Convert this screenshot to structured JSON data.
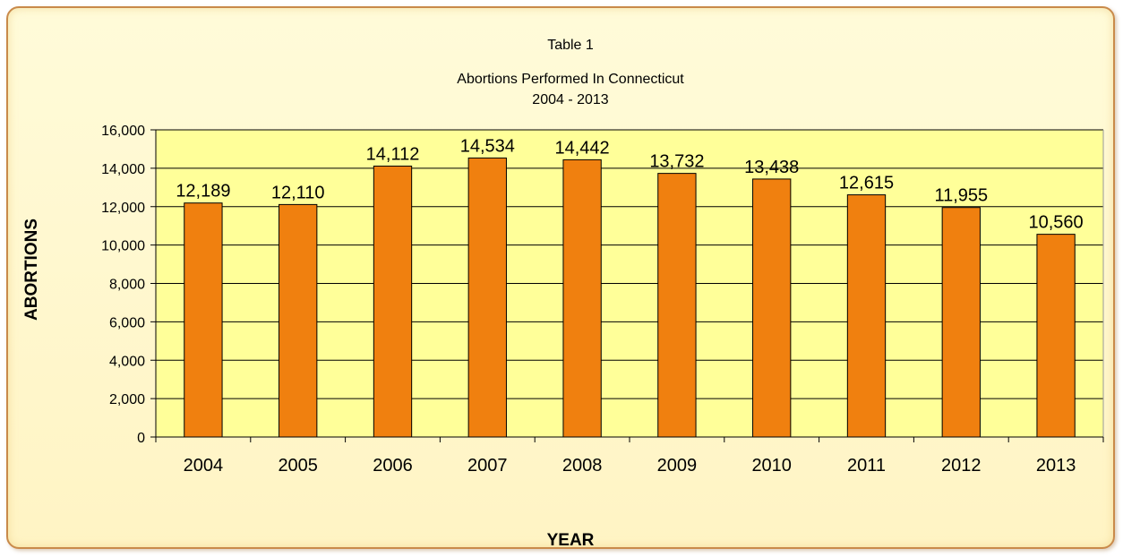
{
  "colors": {
    "plot_background": "#ffff99",
    "bar_fill": "#f0800f",
    "bar_stroke": "#000000",
    "gridline": "#000000",
    "frame_border": "#c98a4a"
  },
  "chart_data": {
    "type": "bar",
    "title": [
      "Table 1",
      "Abortions Performed In Connecticut",
      "2004 - 2013"
    ],
    "xlabel": "YEAR",
    "ylabel": "ABORTIONS",
    "categories": [
      "2004",
      "2005",
      "2006",
      "2007",
      "2008",
      "2009",
      "2010",
      "2011",
      "2012",
      "2013"
    ],
    "values": [
      12189,
      12110,
      14112,
      14534,
      14442,
      13732,
      13438,
      12615,
      11955,
      10560
    ],
    "data_labels": [
      "12,189",
      "12,110",
      "14,112",
      "14,534",
      "14,442",
      "13,732",
      "13,438",
      "12,615",
      "11,955",
      "10,560"
    ],
    "ylim": [
      0,
      16000
    ],
    "yticks": [
      0,
      2000,
      4000,
      6000,
      8000,
      10000,
      12000,
      14000,
      16000
    ],
    "ytick_labels": [
      "0",
      "2,000",
      "4,000",
      "6,000",
      "8,000",
      "10,000",
      "12,000",
      "14,000",
      "16,000"
    ],
    "grid": true,
    "legend": "none"
  }
}
